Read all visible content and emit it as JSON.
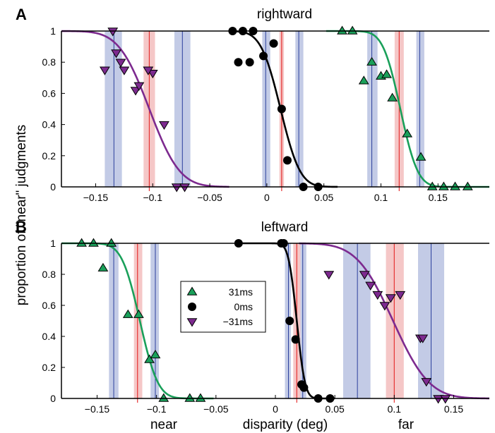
{
  "colors": {
    "green": "#1aa05a",
    "black": "#000000",
    "purple": "#7d2a8f",
    "blue_band": "#c3cbe6",
    "blue_line": "#2b3f9c",
    "red_band": "#f5c7c7",
    "red_line": "#e63232"
  },
  "figure": {
    "ylabel": "proportion of \"near\" judgments",
    "xlabel_left": "near",
    "xlabel_center": "disparity (deg)",
    "xlabel_right": "far"
  },
  "legend": {
    "items": [
      {
        "marker": "triangle-up",
        "color": "green",
        "label": "31ms"
      },
      {
        "marker": "circle",
        "color": "black",
        "label": "0ms"
      },
      {
        "marker": "triangle-down",
        "color": "purple",
        "label": "−31ms"
      }
    ]
  },
  "chart_data": [
    {
      "type": "scatter",
      "panel_letter": "A",
      "title": "rightward",
      "xlim": [
        -0.18,
        0.195
      ],
      "ylim": [
        0,
        1
      ],
      "xticks": [
        {
          "value": -0.15,
          "label": "−0.15"
        },
        {
          "value": -0.1,
          "label": "−0.1"
        },
        {
          "value": -0.05,
          "label": "−0.05"
        },
        {
          "value": 0,
          "label": "0"
        },
        {
          "value": 0.05,
          "label": "0.05"
        },
        {
          "value": 0.1,
          "label": "0.1"
        },
        {
          "value": 0.15,
          "label": "0.15"
        }
      ],
      "yticks": [
        {
          "value": 0,
          "label": "0"
        },
        {
          "value": 0.2,
          "label": "0.2"
        },
        {
          "value": 0.4,
          "label": "0.4"
        },
        {
          "value": 0.6,
          "label": "0.6"
        },
        {
          "value": 0.8,
          "label": "0.8"
        },
        {
          "value": 1,
          "label": "1"
        }
      ],
      "series": [
        {
          "color": "purple",
          "marker": "triangle-down",
          "mu": -0.103,
          "sigma": 0.021,
          "curve_range": [
            -0.18,
            -0.033
          ],
          "points": [
            [
              -0.135,
              1.0
            ],
            [
              -0.132,
              0.86
            ],
            [
              -0.142,
              0.75
            ],
            [
              -0.128,
              0.8
            ],
            [
              -0.125,
              0.75
            ],
            [
              -0.115,
              0.62
            ],
            [
              -0.112,
              0.65
            ],
            [
              -0.1,
              0.73
            ],
            [
              -0.104,
              0.75
            ],
            [
              -0.09,
              0.4
            ],
            [
              -0.079,
              0.0
            ],
            [
              -0.072,
              0.0
            ]
          ],
          "pse_band": [
            -0.108,
            -0.098
          ],
          "pse": -0.103,
          "bands": [
            {
              "band": [
                -0.142,
                -0.127
              ],
              "line": -0.134
            },
            {
              "band": [
                -0.081,
                -0.067
              ],
              "line": -0.074
            }
          ]
        },
        {
          "color": "black",
          "marker": "circle",
          "mu": 0.012,
          "sigma": 0.0135,
          "curve_range": [
            -0.03,
            0.062
          ],
          "points": [
            [
              -0.03,
              1.0
            ],
            [
              -0.021,
              1.0
            ],
            [
              -0.025,
              0.8
            ],
            [
              -0.015,
              0.8
            ],
            [
              -0.012,
              1.0
            ],
            [
              -0.003,
              0.84
            ],
            [
              0.006,
              0.92
            ],
            [
              0.013,
              0.5
            ],
            [
              0.018,
              0.17
            ],
            [
              0.032,
              0.0
            ],
            [
              0.045,
              0.0
            ]
          ],
          "pse_band": [
            0.011,
            0.015
          ],
          "pse": 0.013,
          "bands": [
            {
              "band": [
                -0.004,
                0.003
              ],
              "line": -0.001
            },
            {
              "band": [
                0.025,
                0.032
              ],
              "line": 0.028
            }
          ]
        },
        {
          "color": "green",
          "marker": "triangle-up",
          "mu": 0.117,
          "sigma": 0.012,
          "curve_range": [
            0.052,
            0.195
          ],
          "points": [
            [
              0.066,
              1.0
            ],
            [
              0.075,
              1.0
            ],
            [
              0.085,
              0.68
            ],
            [
              0.092,
              0.8
            ],
            [
              0.1,
              0.71
            ],
            [
              0.105,
              0.72
            ],
            [
              0.11,
              0.57
            ],
            [
              0.123,
              0.34
            ],
            [
              0.135,
              0.19
            ],
            [
              0.145,
              0.0
            ],
            [
              0.155,
              0.0
            ],
            [
              0.165,
              0.0
            ],
            [
              0.176,
              0.0
            ]
          ],
          "pse_band": [
            0.112,
            0.12
          ],
          "pse": 0.116,
          "bands": [
            {
              "band": [
                0.088,
                0.097
              ],
              "line": 0.092
            },
            {
              "band": [
                0.131,
                0.138
              ],
              "line": 0.134
            }
          ]
        }
      ]
    },
    {
      "type": "scatter",
      "panel_letter": "B",
      "title": "leftward",
      "xlim": [
        -0.18,
        0.18
      ],
      "ylim": [
        0,
        1
      ],
      "xticks": [
        {
          "value": -0.15,
          "label": "−0.15"
        },
        {
          "value": -0.1,
          "label": "−0.1"
        },
        {
          "value": -0.05,
          "label": "−0.05"
        },
        {
          "value": 0,
          "label": "0"
        },
        {
          "value": 0.05,
          "label": "0.05"
        },
        {
          "value": 0.1,
          "label": "0.1"
        },
        {
          "value": 0.15,
          "label": "0.15"
        }
      ],
      "yticks": [
        {
          "value": 0,
          "label": "0"
        },
        {
          "value": 0.2,
          "label": "0.2"
        },
        {
          "value": 0.4,
          "label": "0.4"
        },
        {
          "value": 0.6,
          "label": "0.6"
        },
        {
          "value": 0.8,
          "label": "0.8"
        },
        {
          "value": 1,
          "label": "1"
        }
      ],
      "series": [
        {
          "color": "green",
          "marker": "triangle-up",
          "mu": -0.114,
          "sigma": 0.012,
          "curve_range": [
            -0.18,
            -0.052
          ],
          "points": [
            [
              -0.163,
              1.0
            ],
            [
              -0.153,
              1.0
            ],
            [
              -0.145,
              0.84
            ],
            [
              -0.138,
              1.0
            ],
            [
              -0.124,
              0.54
            ],
            [
              -0.115,
              0.54
            ],
            [
              -0.106,
              0.25
            ],
            [
              -0.101,
              0.28
            ],
            [
              -0.094,
              0.0
            ],
            [
              -0.072,
              0.0
            ],
            [
              -0.063,
              0.0
            ]
          ],
          "pse_band": [
            -0.119,
            -0.112
          ],
          "pse": -0.116,
          "bands": [
            {
              "band": [
                -0.14,
                -0.132
              ],
              "line": -0.136
            },
            {
              "band": [
                -0.105,
                -0.098
              ],
              "line": -0.101
            }
          ]
        },
        {
          "color": "black",
          "marker": "circle",
          "mu": 0.018,
          "sigma": 0.0055,
          "curve_range": [
            -0.032,
            0.05
          ],
          "points": [
            [
              -0.031,
              1.0
            ],
            [
              0.005,
              1.0
            ],
            [
              0.007,
              1.0
            ],
            [
              0.012,
              0.5
            ],
            [
              0.017,
              0.38
            ],
            [
              0.024,
              0.07
            ],
            [
              0.022,
              0.09
            ],
            [
              0.036,
              0.0
            ],
            [
              0.046,
              0.0
            ]
          ],
          "pse_band": [
            0.015,
            0.021
          ],
          "pse": 0.018,
          "bands": [
            {
              "band": [
                0.008,
                0.013
              ],
              "line": 0.011
            },
            {
              "band": [
                0.021,
                0.026
              ],
              "line": 0.023
            }
          ]
        },
        {
          "color": "purple",
          "marker": "triangle-down",
          "mu": 0.099,
          "sigma": 0.024,
          "curve_range": [
            0.02,
            0.18
          ],
          "points": [
            [
              0.045,
              0.8
            ],
            [
              0.075,
              0.8
            ],
            [
              0.08,
              0.73
            ],
            [
              0.086,
              0.67
            ],
            [
              0.092,
              0.6
            ],
            [
              0.097,
              0.65
            ],
            [
              0.105,
              0.67
            ],
            [
              0.122,
              0.39
            ],
            [
              0.124,
              0.39
            ],
            [
              0.127,
              0.11
            ],
            [
              0.137,
              0.0
            ],
            [
              0.143,
              0.0
            ]
          ],
          "pse_band": [
            0.093,
            0.108
          ],
          "pse": 0.1,
          "bands": [
            {
              "band": [
                0.057,
                0.08
              ],
              "line": 0.069
            },
            {
              "band": [
                0.12,
                0.142
              ],
              "line": 0.131
            }
          ]
        }
      ]
    }
  ]
}
